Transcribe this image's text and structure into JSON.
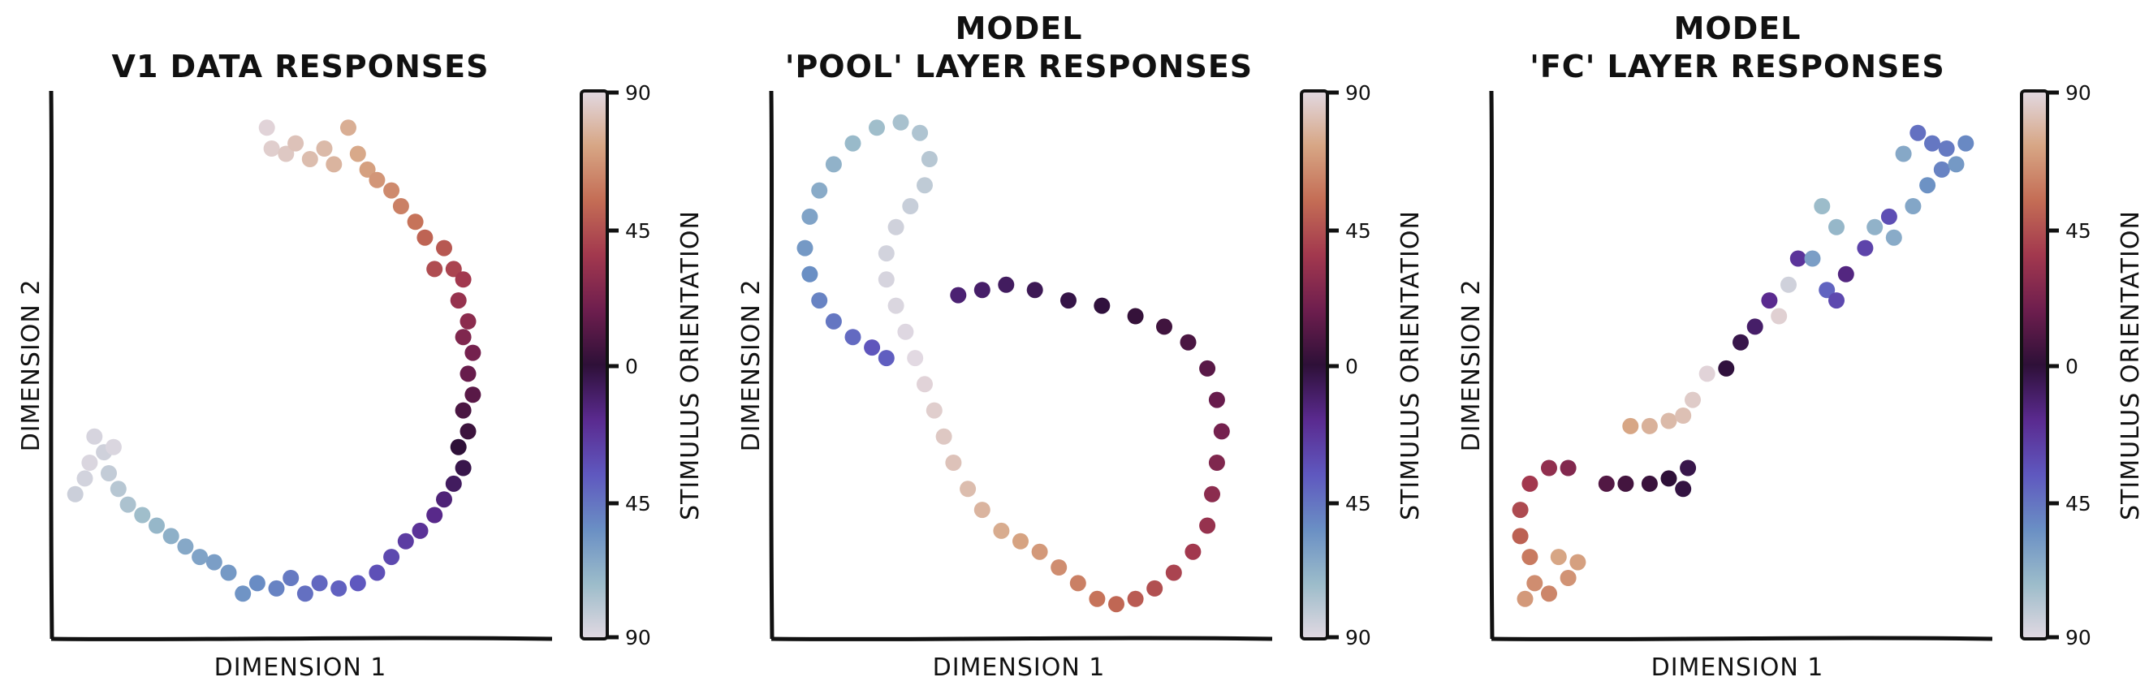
{
  "colormap": {
    "name": "twilight_shifted",
    "stops": [
      "#e2d9e2",
      "#9cbcca",
      "#6a8fc4",
      "#5f58bf",
      "#5a2a8f",
      "#2e1038",
      "#6e1e4e",
      "#a2384e",
      "#c46d55",
      "#d7a685",
      "#e2d9e2"
    ]
  },
  "chart_data": [
    {
      "type": "scatter",
      "title": "V1 data responses",
      "xlabel": "Dimension 1",
      "ylabel": "Dimension 2",
      "colorbar_label": "Stimulus orientation",
      "colorbar_ticks": [
        "90",
        "45",
        "0",
        "45",
        "90"
      ],
      "xlim": [
        0,
        100
      ],
      "ylim": [
        0,
        100
      ],
      "grid": false,
      "points": [
        {
          "x": 43,
          "y": 95,
          "o": 88
        },
        {
          "x": 44,
          "y": 91,
          "o": 86
        },
        {
          "x": 47,
          "y": 90,
          "o": 84
        },
        {
          "x": 49,
          "y": 92,
          "o": 82
        },
        {
          "x": 52,
          "y": 89,
          "o": 80
        },
        {
          "x": 55,
          "y": 91,
          "o": 79
        },
        {
          "x": 57,
          "y": 88,
          "o": 77
        },
        {
          "x": 60,
          "y": 95,
          "o": 75
        },
        {
          "x": 62,
          "y": 90,
          "o": 73
        },
        {
          "x": 64,
          "y": 87,
          "o": 70
        },
        {
          "x": 66,
          "y": 85,
          "o": 67
        },
        {
          "x": 69,
          "y": 83,
          "o": 63
        },
        {
          "x": 71,
          "y": 80,
          "o": 60
        },
        {
          "x": 74,
          "y": 77,
          "o": 56
        },
        {
          "x": 76,
          "y": 74,
          "o": 51
        },
        {
          "x": 80,
          "y": 72,
          "o": 47
        },
        {
          "x": 78,
          "y": 68,
          "o": 43
        },
        {
          "x": 82,
          "y": 68,
          "o": 40
        },
        {
          "x": 84,
          "y": 66,
          "o": 36
        },
        {
          "x": 83,
          "y": 62,
          "o": 32
        },
        {
          "x": 85,
          "y": 58,
          "o": 28
        },
        {
          "x": 84,
          "y": 55,
          "o": 24
        },
        {
          "x": 86,
          "y": 52,
          "o": 20
        },
        {
          "x": 85,
          "y": 48,
          "o": 16
        },
        {
          "x": 86,
          "y": 44,
          "o": 12
        },
        {
          "x": 84,
          "y": 41,
          "o": 8
        },
        {
          "x": 85,
          "y": 37,
          "o": 4
        },
        {
          "x": 83,
          "y": 34,
          "o": 0
        },
        {
          "x": 84,
          "y": 30,
          "o": -4
        },
        {
          "x": 82,
          "y": 27,
          "o": -8
        },
        {
          "x": 80,
          "y": 24,
          "o": -13
        },
        {
          "x": 78,
          "y": 21,
          "o": -17
        },
        {
          "x": 75,
          "y": 18,
          "o": -21
        },
        {
          "x": 72,
          "y": 16,
          "o": -25
        },
        {
          "x": 69,
          "y": 13,
          "o": -30
        },
        {
          "x": 66,
          "y": 10,
          "o": -33
        },
        {
          "x": 62,
          "y": 8,
          "o": -36
        },
        {
          "x": 58,
          "y": 7,
          "o": -39
        },
        {
          "x": 54,
          "y": 8,
          "o": -41
        },
        {
          "x": 51,
          "y": 6,
          "o": -44
        },
        {
          "x": 48,
          "y": 9,
          "o": -47
        },
        {
          "x": 45,
          "y": 7,
          "o": -50
        },
        {
          "x": 41,
          "y": 8,
          "o": -53
        },
        {
          "x": 38,
          "y": 6,
          "o": -56
        },
        {
          "x": 35,
          "y": 10,
          "o": -58
        },
        {
          "x": 32,
          "y": 12,
          "o": -60
        },
        {
          "x": 29,
          "y": 13,
          "o": -62
        },
        {
          "x": 26,
          "y": 15,
          "o": -64
        },
        {
          "x": 23,
          "y": 17,
          "o": -67
        },
        {
          "x": 20,
          "y": 19,
          "o": -70
        },
        {
          "x": 17,
          "y": 21,
          "o": -73
        },
        {
          "x": 14,
          "y": 23,
          "o": -76
        },
        {
          "x": 12,
          "y": 26,
          "o": -79
        },
        {
          "x": 10,
          "y": 29,
          "o": -82
        },
        {
          "x": 9,
          "y": 33,
          "o": -85
        },
        {
          "x": 7,
          "y": 36,
          "o": -87
        },
        {
          "x": 5,
          "y": 28,
          "o": -86
        },
        {
          "x": 6,
          "y": 31,
          "o": -88
        },
        {
          "x": 3,
          "y": 25,
          "o": -84
        },
        {
          "x": 11,
          "y": 34,
          "o": -88
        }
      ]
    },
    {
      "type": "scatter",
      "title_lines": [
        "Model",
        "'pool' layer responses"
      ],
      "xlabel": "Dimension 1",
      "ylabel": "Dimension 2",
      "colorbar_label": "Stimulus orientation",
      "colorbar_ticks": [
        "90",
        "45",
        "0",
        "45",
        "90"
      ],
      "xlim": [
        0,
        100
      ],
      "ylim": [
        0,
        100
      ],
      "grid": false,
      "points": [
        {
          "x": 19,
          "y": 53,
          "o": -35
        },
        {
          "x": 22,
          "y": 51,
          "o": -38
        },
        {
          "x": 15,
          "y": 55,
          "o": -42
        },
        {
          "x": 11,
          "y": 58,
          "o": -46
        },
        {
          "x": 8,
          "y": 62,
          "o": -50
        },
        {
          "x": 6,
          "y": 67,
          "o": -54
        },
        {
          "x": 5,
          "y": 72,
          "o": -58
        },
        {
          "x": 6,
          "y": 78,
          "o": -62
        },
        {
          "x": 8,
          "y": 83,
          "o": -65
        },
        {
          "x": 11,
          "y": 88,
          "o": -68
        },
        {
          "x": 15,
          "y": 92,
          "o": -71
        },
        {
          "x": 20,
          "y": 95,
          "o": -73
        },
        {
          "x": 25,
          "y": 96,
          "o": -75
        },
        {
          "x": 29,
          "y": 94,
          "o": -77
        },
        {
          "x": 31,
          "y": 89,
          "o": -79
        },
        {
          "x": 30,
          "y": 84,
          "o": -81
        },
        {
          "x": 27,
          "y": 80,
          "o": -83
        },
        {
          "x": 24,
          "y": 76,
          "o": -85
        },
        {
          "x": 22,
          "y": 71,
          "o": -86
        },
        {
          "x": 22,
          "y": 66,
          "o": -87
        },
        {
          "x": 24,
          "y": 61,
          "o": -88
        },
        {
          "x": 26,
          "y": 56,
          "o": -89
        },
        {
          "x": 28,
          "y": 51,
          "o": -90
        },
        {
          "x": 30,
          "y": 46,
          "o": 88
        },
        {
          "x": 32,
          "y": 41,
          "o": 86
        },
        {
          "x": 34,
          "y": 36,
          "o": 84
        },
        {
          "x": 36,
          "y": 31,
          "o": 82
        },
        {
          "x": 39,
          "y": 26,
          "o": 80
        },
        {
          "x": 42,
          "y": 22,
          "o": 77
        },
        {
          "x": 46,
          "y": 18,
          "o": 74
        },
        {
          "x": 50,
          "y": 16,
          "o": 71
        },
        {
          "x": 54,
          "y": 14,
          "o": 68
        },
        {
          "x": 58,
          "y": 11,
          "o": 64
        },
        {
          "x": 62,
          "y": 8,
          "o": 60
        },
        {
          "x": 66,
          "y": 5,
          "o": 56
        },
        {
          "x": 70,
          "y": 4,
          "o": 52
        },
        {
          "x": 74,
          "y": 5,
          "o": 48
        },
        {
          "x": 78,
          "y": 7,
          "o": 44
        },
        {
          "x": 82,
          "y": 10,
          "o": 40
        },
        {
          "x": 86,
          "y": 14,
          "o": 36
        },
        {
          "x": 89,
          "y": 19,
          "o": 32
        },
        {
          "x": 90,
          "y": 25,
          "o": 28
        },
        {
          "x": 91,
          "y": 31,
          "o": 24
        },
        {
          "x": 92,
          "y": 37,
          "o": 20
        },
        {
          "x": 91,
          "y": 43,
          "o": 16
        },
        {
          "x": 89,
          "y": 49,
          "o": 12
        },
        {
          "x": 85,
          "y": 54,
          "o": 8
        },
        {
          "x": 80,
          "y": 57,
          "o": 5
        },
        {
          "x": 74,
          "y": 59,
          "o": 2
        },
        {
          "x": 67,
          "y": 61,
          "o": -1
        },
        {
          "x": 60,
          "y": 62,
          "o": -3
        },
        {
          "x": 53,
          "y": 64,
          "o": -6
        },
        {
          "x": 47,
          "y": 65,
          "o": -8
        },
        {
          "x": 42,
          "y": 64,
          "o": -10
        },
        {
          "x": 37,
          "y": 63,
          "o": -12
        }
      ]
    },
    {
      "type": "scatter",
      "title_lines": [
        "Model",
        "'fc' layer responses"
      ],
      "xlabel": "Dimension 1",
      "ylabel": "Dimension 2",
      "colorbar_label": "Stimulus orientation",
      "colorbar_ticks": [
        "90",
        "45",
        "0",
        "45",
        "90"
      ],
      "xlim": [
        0,
        100
      ],
      "ylim": [
        0,
        100
      ],
      "grid": false,
      "points": [
        {
          "x": 5,
          "y": 5,
          "o": 68
        },
        {
          "x": 7,
          "y": 8,
          "o": 64
        },
        {
          "x": 10,
          "y": 6,
          "o": 62
        },
        {
          "x": 14,
          "y": 9,
          "o": 66
        },
        {
          "x": 16,
          "y": 12,
          "o": 70
        },
        {
          "x": 12,
          "y": 13,
          "o": 72
        },
        {
          "x": 6,
          "y": 13,
          "o": 58
        },
        {
          "x": 4,
          "y": 17,
          "o": 50
        },
        {
          "x": 4,
          "y": 22,
          "o": 42
        },
        {
          "x": 6,
          "y": 27,
          "o": 36
        },
        {
          "x": 10,
          "y": 30,
          "o": 30
        },
        {
          "x": 14,
          "y": 30,
          "o": 25
        },
        {
          "x": 22,
          "y": 27,
          "o": 10
        },
        {
          "x": 26,
          "y": 27,
          "o": 6
        },
        {
          "x": 31,
          "y": 27,
          "o": 3
        },
        {
          "x": 35,
          "y": 28,
          "o": 0
        },
        {
          "x": 38,
          "y": 26,
          "o": -2
        },
        {
          "x": 39,
          "y": 30,
          "o": -4
        },
        {
          "x": 27,
          "y": 38,
          "o": 72
        },
        {
          "x": 31,
          "y": 38,
          "o": 76
        },
        {
          "x": 35,
          "y": 39,
          "o": 79
        },
        {
          "x": 38,
          "y": 40,
          "o": 81
        },
        {
          "x": 40,
          "y": 43,
          "o": 85
        },
        {
          "x": 43,
          "y": 48,
          "o": 88
        },
        {
          "x": 47,
          "y": 49,
          "o": -1
        },
        {
          "x": 50,
          "y": 54,
          "o": -4
        },
        {
          "x": 53,
          "y": 57,
          "o": -10
        },
        {
          "x": 56,
          "y": 62,
          "o": -18
        },
        {
          "x": 60,
          "y": 65,
          "o": -85
        },
        {
          "x": 58,
          "y": 59,
          "o": 87
        },
        {
          "x": 62,
          "y": 70,
          "o": -22
        },
        {
          "x": 65,
          "y": 70,
          "o": -60
        },
        {
          "x": 68,
          "y": 64,
          "o": -40
        },
        {
          "x": 70,
          "y": 62,
          "o": -30
        },
        {
          "x": 72,
          "y": 67,
          "o": -15
        },
        {
          "x": 76,
          "y": 72,
          "o": -28
        },
        {
          "x": 81,
          "y": 78,
          "o": -32
        },
        {
          "x": 67,
          "y": 80,
          "o": -72
        },
        {
          "x": 70,
          "y": 76,
          "o": -70
        },
        {
          "x": 78,
          "y": 76,
          "o": -68
        },
        {
          "x": 82,
          "y": 74,
          "o": -65
        },
        {
          "x": 86,
          "y": 80,
          "o": -63
        },
        {
          "x": 89,
          "y": 84,
          "o": -55
        },
        {
          "x": 92,
          "y": 87,
          "o": -50
        },
        {
          "x": 95,
          "y": 88,
          "o": -58
        },
        {
          "x": 97,
          "y": 92,
          "o": -52
        },
        {
          "x": 93,
          "y": 91,
          "o": -47
        },
        {
          "x": 90,
          "y": 92,
          "o": -46
        },
        {
          "x": 84,
          "y": 90,
          "o": -64
        },
        {
          "x": 87,
          "y": 94,
          "o": -44
        }
      ]
    }
  ]
}
